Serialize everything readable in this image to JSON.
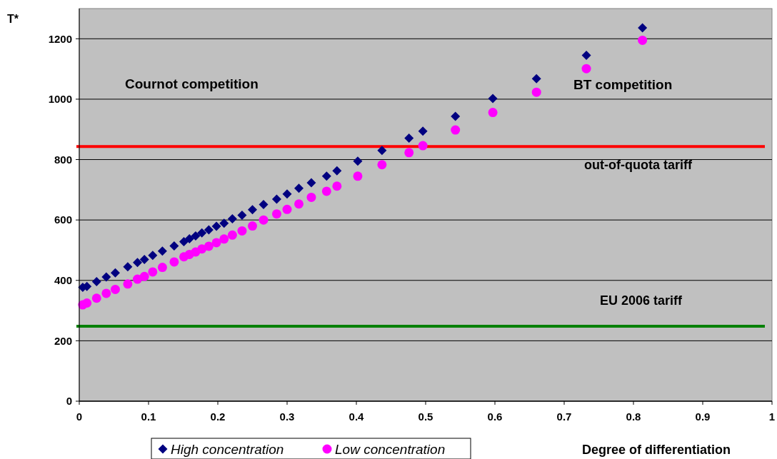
{
  "chart_data": {
    "type": "scatter",
    "ylabel": "T*",
    "xlabel": "Degree of differentiation",
    "annotations": [
      "Cournot competition",
      "BT competition"
    ],
    "x": [
      0.005,
      0.011,
      0.025,
      0.039,
      0.052,
      0.07,
      0.084,
      0.094,
      0.106,
      0.12,
      0.137,
      0.151,
      0.159,
      0.168,
      0.177,
      0.187,
      0.198,
      0.209,
      0.221,
      0.235,
      0.25,
      0.266,
      0.285,
      0.3,
      0.317,
      0.335,
      0.357,
      0.372,
      0.402,
      0.437,
      0.476,
      0.496,
      0.543,
      0.597,
      0.66,
      0.732,
      0.813
    ],
    "series": [
      {
        "name": "High concentration",
        "color": "#000080",
        "marker": "diamond",
        "values": [
          377,
          380,
          396,
          411,
          425,
          445,
          459,
          469,
          483,
          497,
          514,
          528,
          538,
          547,
          557,
          567,
          579,
          589,
          604,
          616,
          634,
          651,
          669,
          686,
          705,
          723,
          745,
          763,
          795,
          830,
          871,
          894,
          943,
          1002,
          1068,
          1145,
          1236
        ]
      },
      {
        "name": "Low concentration",
        "color": "#ff00ff",
        "marker": "circle",
        "values": [
          319,
          325,
          341,
          357,
          370,
          388,
          404,
          413,
          428,
          443,
          461,
          478,
          486,
          494,
          504,
          513,
          525,
          537,
          550,
          564,
          580,
          600,
          620,
          635,
          653,
          675,
          695,
          712,
          745,
          783,
          823,
          846,
          898,
          956,
          1023,
          1101,
          1195
        ]
      }
    ],
    "ref_lines": [
      {
        "axis": "y",
        "value": 843,
        "label": "out-of-quota tariff",
        "color": "#ff0000"
      },
      {
        "axis": "y",
        "value": 248,
        "label": "EU 2006 tariff",
        "color": "#008000"
      }
    ],
    "xlim": [
      0,
      1
    ],
    "xticks": [
      0,
      0.1,
      0.2,
      0.3,
      0.4,
      0.5,
      0.6,
      0.7,
      0.8,
      0.9,
      1
    ],
    "ylim": [
      0,
      1300
    ],
    "yticks": [
      0,
      200,
      400,
      600,
      800,
      1000,
      1200
    ],
    "grid": "y",
    "legend": "bottom"
  }
}
